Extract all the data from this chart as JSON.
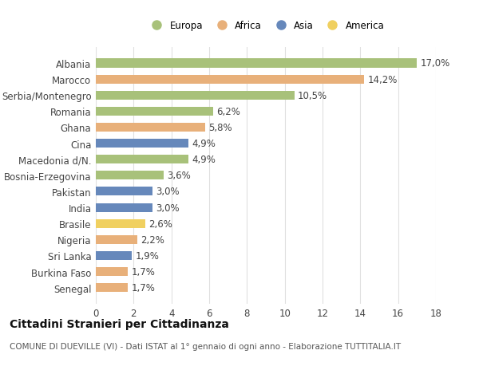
{
  "countries": [
    "Albania",
    "Marocco",
    "Serbia/Montenegro",
    "Romania",
    "Ghana",
    "Cina",
    "Macedonia d/N.",
    "Bosnia-Erzegovina",
    "Pakistan",
    "India",
    "Brasile",
    "Nigeria",
    "Sri Lanka",
    "Burkina Faso",
    "Senegal"
  ],
  "values": [
    17.0,
    14.2,
    10.5,
    6.2,
    5.8,
    4.9,
    4.9,
    3.6,
    3.0,
    3.0,
    2.6,
    2.2,
    1.9,
    1.7,
    1.7
  ],
  "labels": [
    "17,0%",
    "14,2%",
    "10,5%",
    "6,2%",
    "5,8%",
    "4,9%",
    "4,9%",
    "3,6%",
    "3,0%",
    "3,0%",
    "2,6%",
    "2,2%",
    "1,9%",
    "1,7%",
    "1,7%"
  ],
  "continents": [
    "Europa",
    "Africa",
    "Europa",
    "Europa",
    "Africa",
    "Asia",
    "Europa",
    "Europa",
    "Asia",
    "Asia",
    "America",
    "Africa",
    "Asia",
    "Africa",
    "Africa"
  ],
  "continent_colors": {
    "Europa": "#a8c17a",
    "Africa": "#e8b07a",
    "Asia": "#6688bb",
    "America": "#f0d060"
  },
  "legend_order": [
    "Europa",
    "Africa",
    "Asia",
    "America"
  ],
  "title": "Cittadini Stranieri per Cittadinanza",
  "subtitle": "COMUNE DI DUEVILLE (VI) - Dati ISTAT al 1° gennaio di ogni anno - Elaborazione TUTTITALIA.IT",
  "xlim": [
    0,
    18
  ],
  "xticks": [
    0,
    2,
    4,
    6,
    8,
    10,
    12,
    14,
    16,
    18
  ],
  "bg_color": "#ffffff",
  "grid_color": "#e0e0e0",
  "bar_height": 0.55,
  "label_fontsize": 8.5,
  "tick_fontsize": 8.5,
  "title_fontsize": 10,
  "subtitle_fontsize": 7.5
}
